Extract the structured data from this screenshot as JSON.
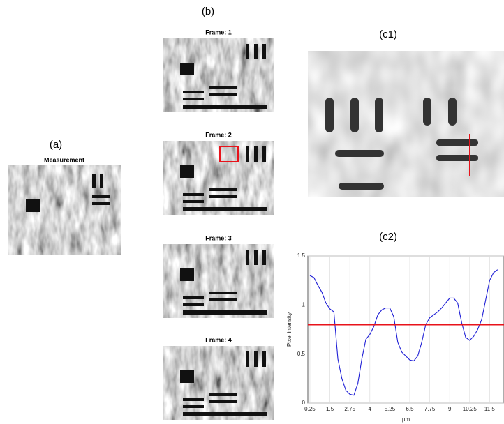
{
  "panels": {
    "a": {
      "label": "(a)",
      "title": "Measurement"
    },
    "b": {
      "label": "(b)",
      "frames": [
        "Frame: 1",
        "Frame: 2",
        "Frame: 3",
        "Frame: 4"
      ]
    },
    "c1": {
      "label": "(c1)"
    },
    "c2": {
      "label": "(c2)"
    }
  },
  "chart_data": {
    "type": "line",
    "xlabel": "µm",
    "ylabel": "Pixel intensity",
    "x": [
      0.25,
      0.5,
      0.75,
      1,
      1.25,
      1.5,
      1.75,
      2,
      2.25,
      2.5,
      2.75,
      3,
      3.25,
      3.5,
      3.75,
      4,
      4.25,
      4.5,
      4.75,
      5,
      5.25,
      5.5,
      5.75,
      6,
      6.25,
      6.5,
      6.75,
      7,
      7.25,
      7.5,
      7.75,
      8,
      8.25,
      8.5,
      8.75,
      9,
      9.25,
      9.5,
      9.75,
      10,
      10.25,
      10.5,
      10.75,
      11,
      11.25,
      11.5,
      11.75,
      12
    ],
    "series": [
      {
        "color": "#1f1fd6",
        "values": [
          1.3,
          1.28,
          1.2,
          1.13,
          1.02,
          0.96,
          0.93,
          0.45,
          0.25,
          0.13,
          0.09,
          0.08,
          0.2,
          0.45,
          0.65,
          0.7,
          0.78,
          0.9,
          0.95,
          0.97,
          0.97,
          0.88,
          0.62,
          0.52,
          0.48,
          0.44,
          0.43,
          0.48,
          0.62,
          0.8,
          0.87,
          0.9,
          0.93,
          0.97,
          1.02,
          1.07,
          1.07,
          1.02,
          0.82,
          0.67,
          0.64,
          0.68,
          0.75,
          0.85,
          1.05,
          1.25,
          1.33,
          1.36
        ]
      }
    ],
    "threshold": 0.8,
    "threshold_color": "#e8131b",
    "xlim": [
      0.12,
      12.4
    ],
    "ylim": [
      0,
      1.5
    ],
    "xticks": [
      0.25,
      1.5,
      2.75,
      4,
      5.25,
      6.5,
      7.75,
      9,
      10.25,
      11.5
    ],
    "yticks": [
      0,
      0.5,
      1,
      1.5
    ],
    "grid": true
  }
}
